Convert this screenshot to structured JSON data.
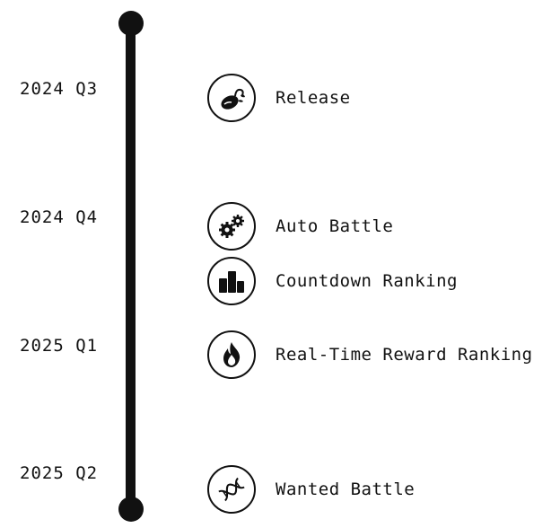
{
  "quarters": [
    {
      "label": "2024 Q3"
    },
    {
      "label": "2024 Q4"
    },
    {
      "label": "2025 Q1"
    },
    {
      "label": "2025 Q2"
    }
  ],
  "events": [
    {
      "label": "Release",
      "icon": "mouse-sprout-icon"
    },
    {
      "label": "Auto Battle",
      "icon": "gears-icon"
    },
    {
      "label": "Countdown Ranking",
      "icon": "podium-icon"
    },
    {
      "label": "Real-Time Reward Ranking",
      "icon": "flame-icon"
    },
    {
      "label": "Wanted Battle",
      "icon": "dna-icon"
    }
  ],
  "colors": {
    "ink": "#111111",
    "background": "#ffffff"
  }
}
